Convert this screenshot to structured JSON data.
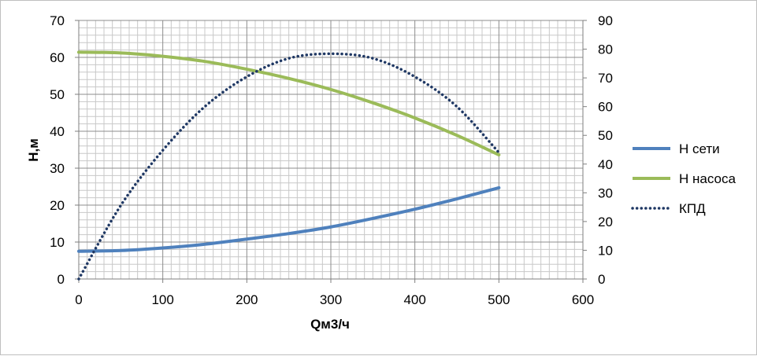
{
  "chart_data": {
    "type": "line",
    "title": "",
    "xlabel": "Qм3/ч",
    "ylabel": "H,м",
    "xlim": [
      0,
      600
    ],
    "ylim": [
      0,
      70
    ],
    "y2lim": [
      0,
      90
    ],
    "x_ticks": [
      "0",
      "100",
      "200",
      "300",
      "400",
      "500",
      "600"
    ],
    "y_ticks": [
      "0",
      "10",
      "20",
      "30",
      "40",
      "50",
      "60",
      "70"
    ],
    "y2_ticks": [
      "0",
      "10",
      "20",
      "30",
      "40",
      "50",
      "60",
      "70",
      "80",
      "90"
    ],
    "grid": true,
    "legend_position": "right",
    "series": [
      {
        "name": "Н сети",
        "axis": "left",
        "color": "#4f81bd",
        "style": "solid",
        "x": [
          0,
          50,
          100,
          150,
          200,
          250,
          300,
          350,
          400,
          450,
          500
        ],
        "y": [
          7.5,
          7.7,
          8.4,
          9.4,
          10.8,
          12.3,
          14.1,
          16.4,
          18.9,
          21.7,
          24.7
        ]
      },
      {
        "name": "Н насоса",
        "axis": "left",
        "color": "#9bbb59",
        "style": "solid",
        "x": [
          0,
          50,
          100,
          150,
          200,
          250,
          300,
          350,
          400,
          450,
          500
        ],
        "y": [
          61.4,
          61.2,
          60.3,
          58.9,
          56.8,
          54.3,
          51.3,
          47.7,
          43.6,
          38.9,
          33.6
        ]
      },
      {
        "name": "КПД",
        "axis": "right",
        "color": "#1f3864",
        "style": "dotted",
        "x": [
          0,
          50,
          100,
          150,
          200,
          250,
          300,
          350,
          400,
          450,
          500
        ],
        "y": [
          0,
          25.6,
          44.8,
          60,
          70.4,
          76.8,
          78.4,
          76.8,
          70.4,
          60,
          44
        ]
      }
    ]
  }
}
